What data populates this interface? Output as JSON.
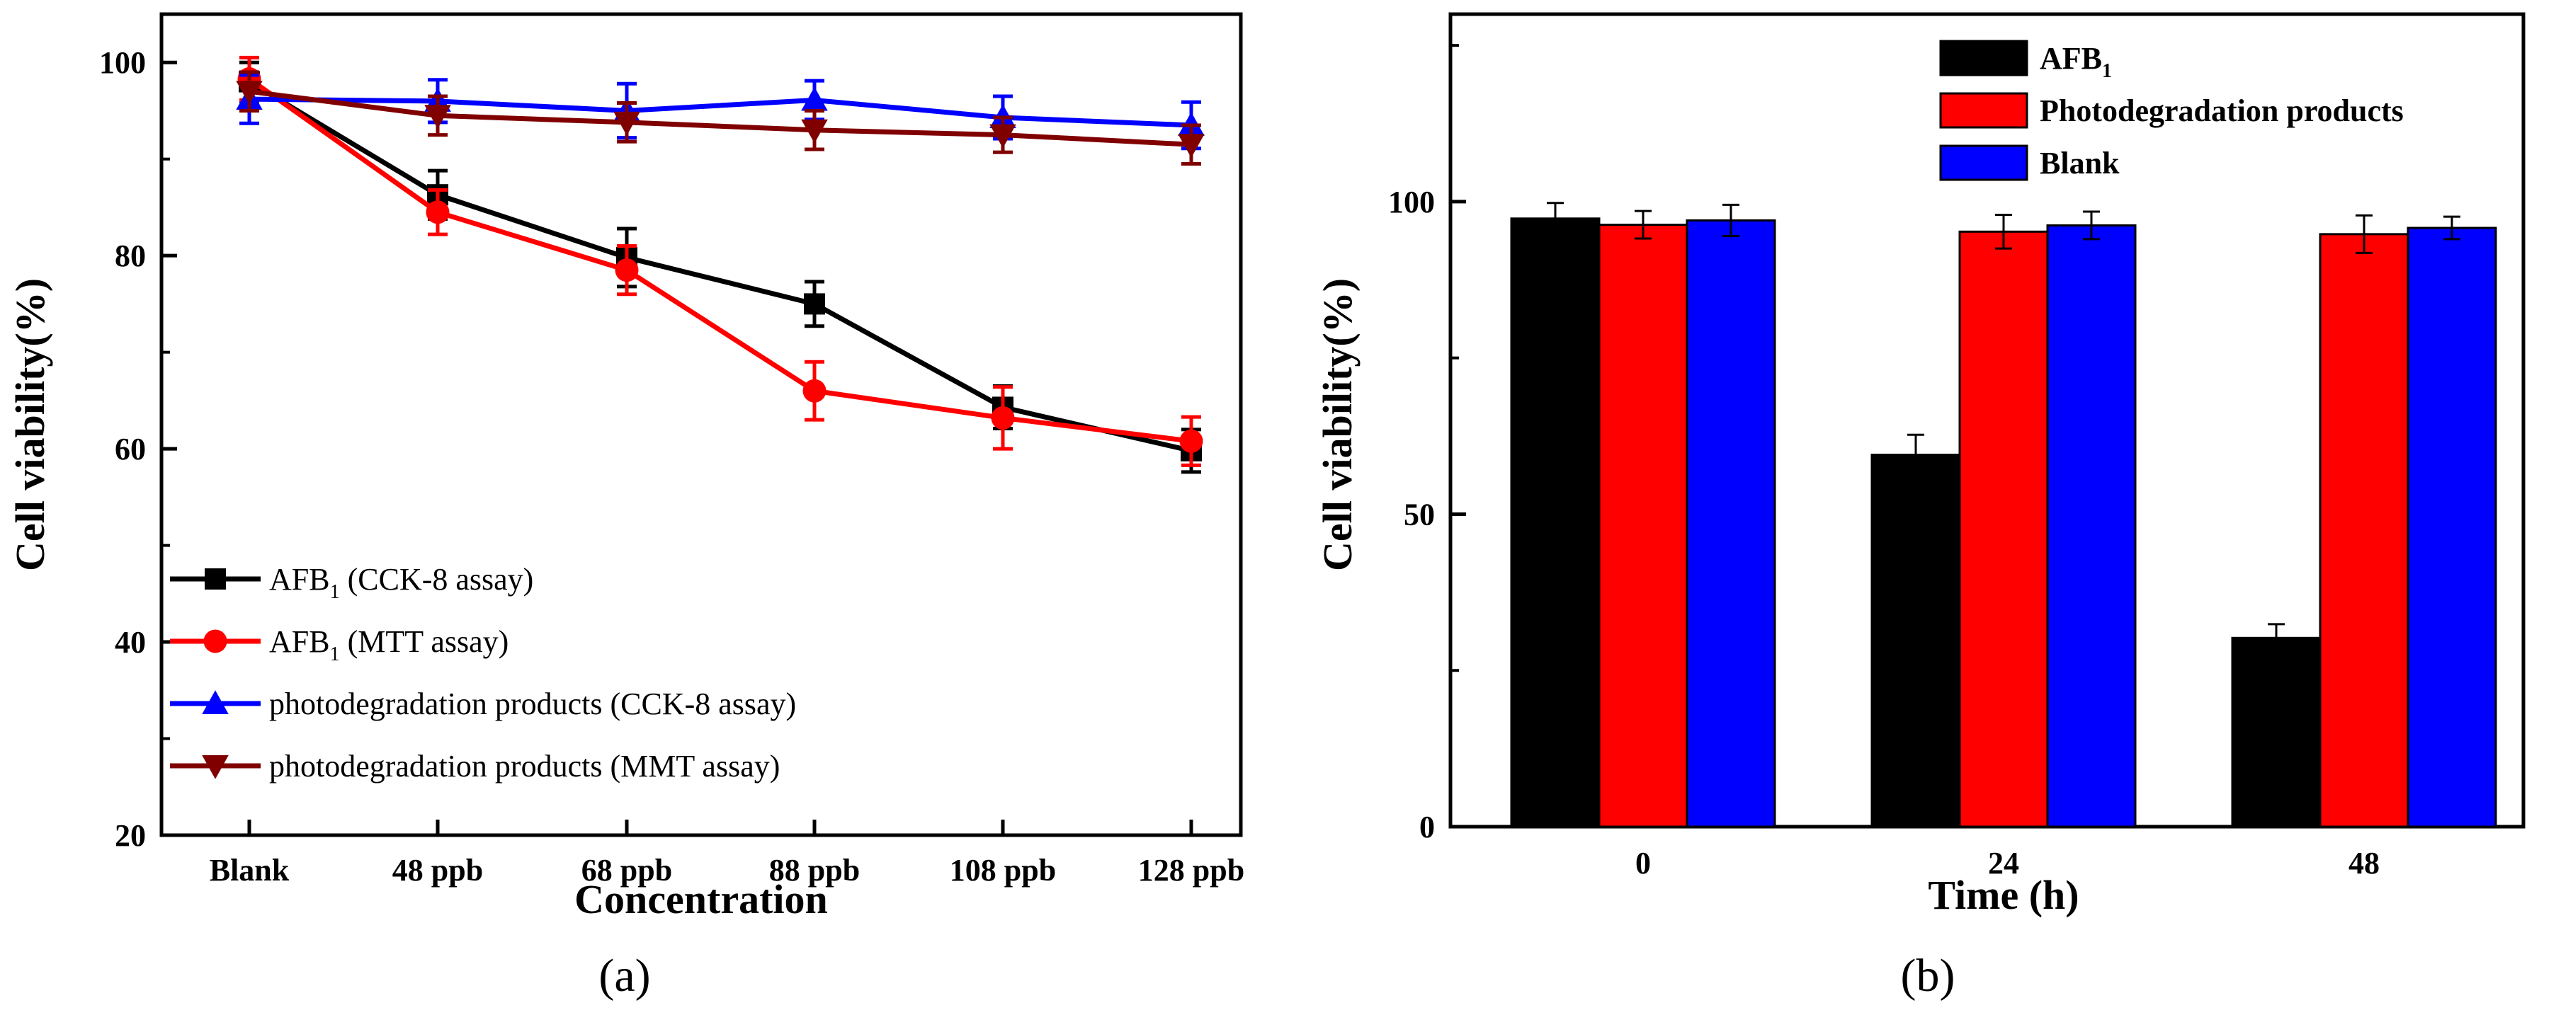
{
  "chart_data": [
    {
      "panel_label": "(a)",
      "type": "line",
      "xlabel": "Concentration",
      "ylabel": "Cell viability(%)",
      "categories": [
        "Blank",
        "48 ppb",
        "68 ppb",
        "88 ppb",
        "108 ppb",
        "128 ppb"
      ],
      "ylim": [
        20,
        105
      ],
      "yticks": [
        "20",
        "40",
        "60",
        "80",
        "100"
      ],
      "grid": false,
      "legend_position": "bottom-left",
      "series": [
        {
          "name": "AFB",
          "name_subscript": "1",
          "name_suffix": " (CCK-8 assay)",
          "marker": "square",
          "color": "#000000",
          "values": [
            98.0,
            86.3,
            79.8,
            75.0,
            64.3,
            59.8
          ],
          "errors": [
            2.0,
            2.5,
            3.0,
            2.3,
            2.2,
            2.2
          ]
        },
        {
          "name": "AFB",
          "name_subscript": "1",
          "name_suffix": " (MTT assay)",
          "marker": "circle",
          "color": "#ff0000",
          "values": [
            98.3,
            84.5,
            78.5,
            66.0,
            63.2,
            60.8
          ],
          "errors": [
            2.2,
            2.3,
            2.5,
            3.0,
            3.2,
            2.5
          ]
        },
        {
          "name": "photodegradation products",
          "name_subscript": "",
          "name_suffix": " (CCK-8 assay)",
          "marker": "triangle-up",
          "color": "#0000ff",
          "values": [
            96.2,
            96.0,
            95.0,
            96.1,
            94.3,
            93.5
          ],
          "errors": [
            2.5,
            2.2,
            2.8,
            2.0,
            2.2,
            2.4
          ]
        },
        {
          "name": "photodegradation products",
          "name_subscript": "",
          "name_suffix": " (MMT assay)",
          "marker": "triangle-down",
          "color": "#800000",
          "values": [
            97.0,
            94.5,
            93.8,
            93.0,
            92.5,
            91.5
          ],
          "errors": [
            2.0,
            2.0,
            2.0,
            2.0,
            1.8,
            2.0
          ]
        }
      ]
    },
    {
      "panel_label": "(b)",
      "type": "bar",
      "xlabel": "Time (h)",
      "ylabel": "Cell viability(%)",
      "categories": [
        "0",
        "24",
        "48"
      ],
      "ylim": [
        0,
        130
      ],
      "yticks": [
        "0",
        "50",
        "100"
      ],
      "grid": false,
      "legend_position": "top-center",
      "series": [
        {
          "name": "AFB",
          "name_subscript": "1",
          "color": "#000000",
          "values": [
            97.3,
            59.5,
            30.2
          ],
          "errors": [
            2.5,
            3.2,
            2.2
          ]
        },
        {
          "name": "Photodegradation products",
          "name_subscript": "",
          "color": "#ff0000",
          "values": [
            96.3,
            95.2,
            94.8
          ],
          "errors": [
            2.2,
            2.7,
            3.0
          ]
        },
        {
          "name": "Blank",
          "name_subscript": "",
          "color": "#0000ff",
          "values": [
            97.0,
            96.2,
            95.8
          ],
          "errors": [
            2.5,
            2.2,
            1.8
          ]
        }
      ]
    }
  ]
}
